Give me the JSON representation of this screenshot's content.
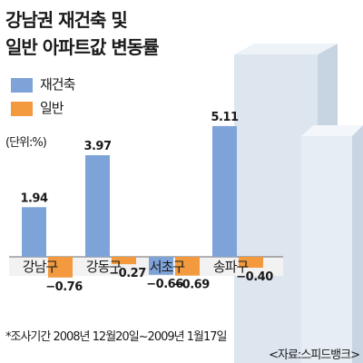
{
  "title_line1": "강남권 재건축 및",
  "title_line2": "일반 아파트값 변동률",
  "unit": "(단위:%)",
  "footnote": "*조사기간 2008년 12월20일~2009년 1월17일",
  "source": "<자료:스피드뱅크>",
  "colors": {
    "rebuild": "#7ea3d8",
    "general": "#f39a3f",
    "building_face": "#dde6ef",
    "building_side": "#c7d4e1",
    "baseline": "#f2f2f2"
  },
  "chart_data": {
    "type": "bar",
    "title": "강남권 재건축 및 일반 아파트값 변동률",
    "unit": "(단위:%)",
    "categories": [
      "강남구",
      "강동구",
      "서초구",
      "송파구"
    ],
    "series": [
      {
        "name": "재건축",
        "values": [
          1.94,
          3.97,
          -0.66,
          5.11
        ]
      },
      {
        "name": "일반",
        "values": [
          -0.76,
          -0.27,
          -0.69,
          -0.4
        ]
      }
    ],
    "value_labels": [
      [
        "1.94",
        "3.97",
        "−0.66",
        "5.11"
      ],
      [
        "−0.76",
        "−0.27",
        "−0.69",
        "−0.40"
      ]
    ],
    "legend": [
      "재건축",
      "일반"
    ],
    "legend_position": "top-left",
    "grid": false
  }
}
